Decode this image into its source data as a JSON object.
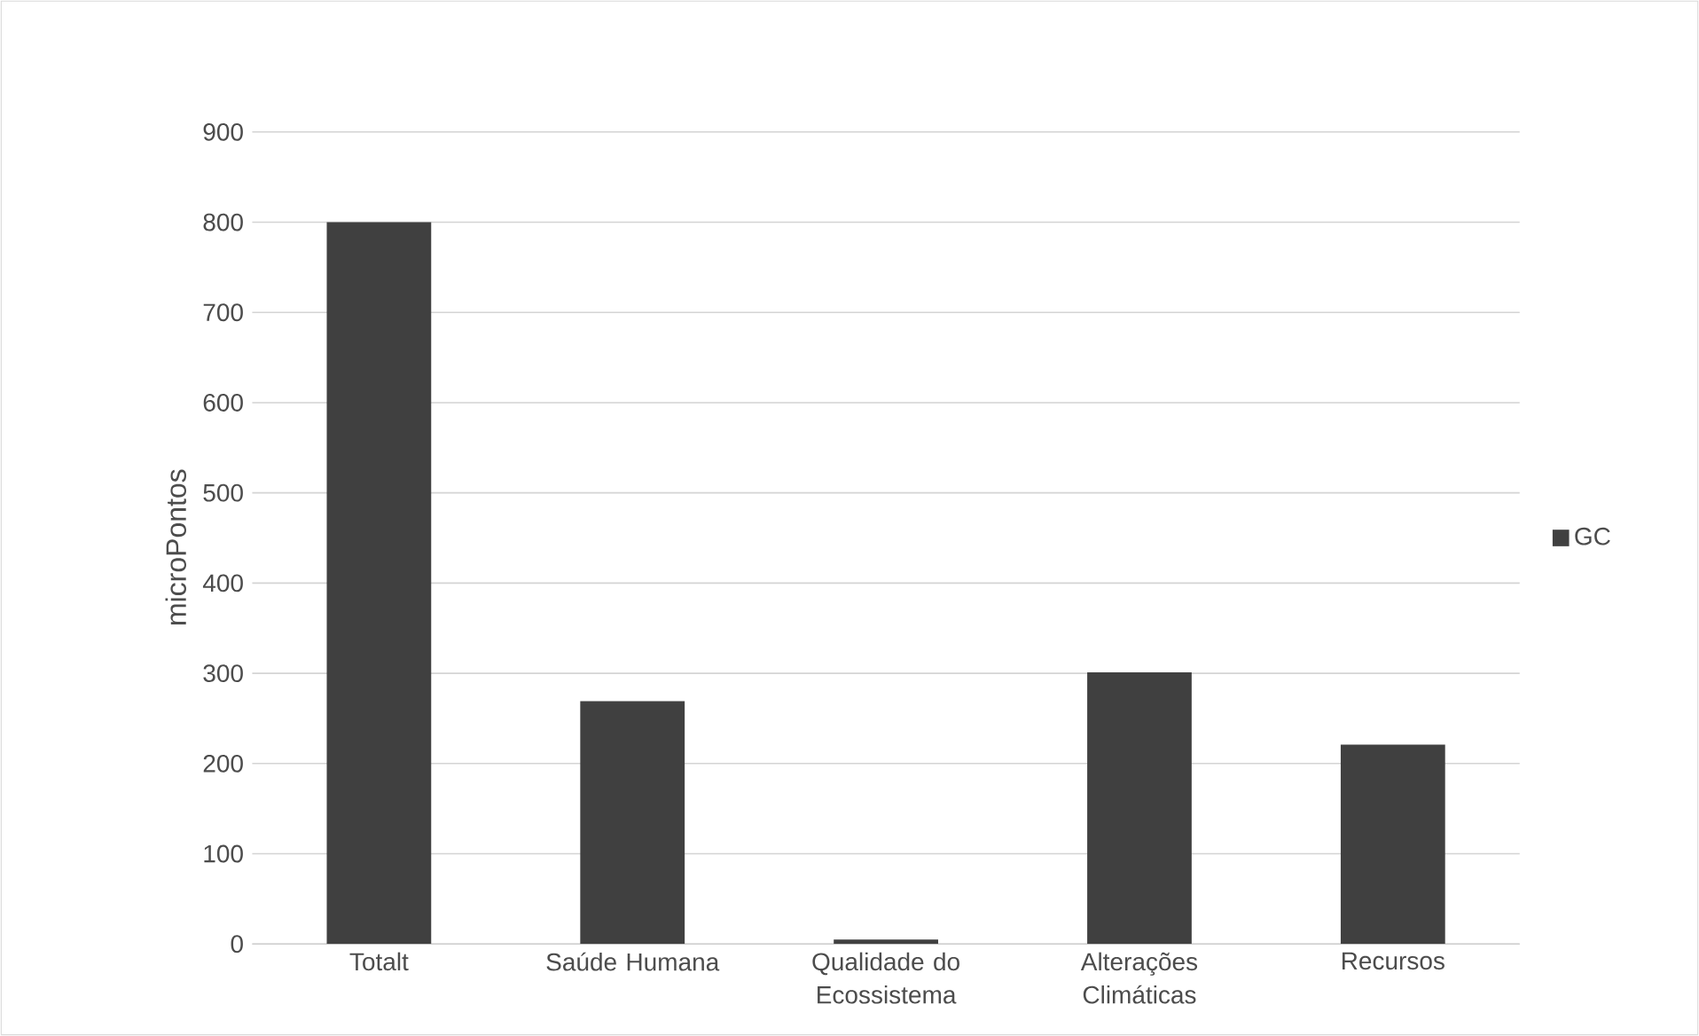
{
  "chart_data": {
    "type": "bar",
    "ylabel": "microPontos",
    "categories": [
      "Totalt",
      "Saúde Humana",
      "Qualidade do Ecossistema",
      "Alterações Climáticas",
      "Recursos"
    ],
    "series": [
      {
        "name": "GC",
        "color": "#404040",
        "values": [
          800,
          269,
          5,
          301,
          221
        ]
      }
    ],
    "ylim": [
      0,
      900
    ],
    "yticks": [
      0,
      100,
      200,
      300,
      400,
      500,
      600,
      700,
      800,
      900
    ],
    "grid": "y",
    "legend": "right"
  }
}
